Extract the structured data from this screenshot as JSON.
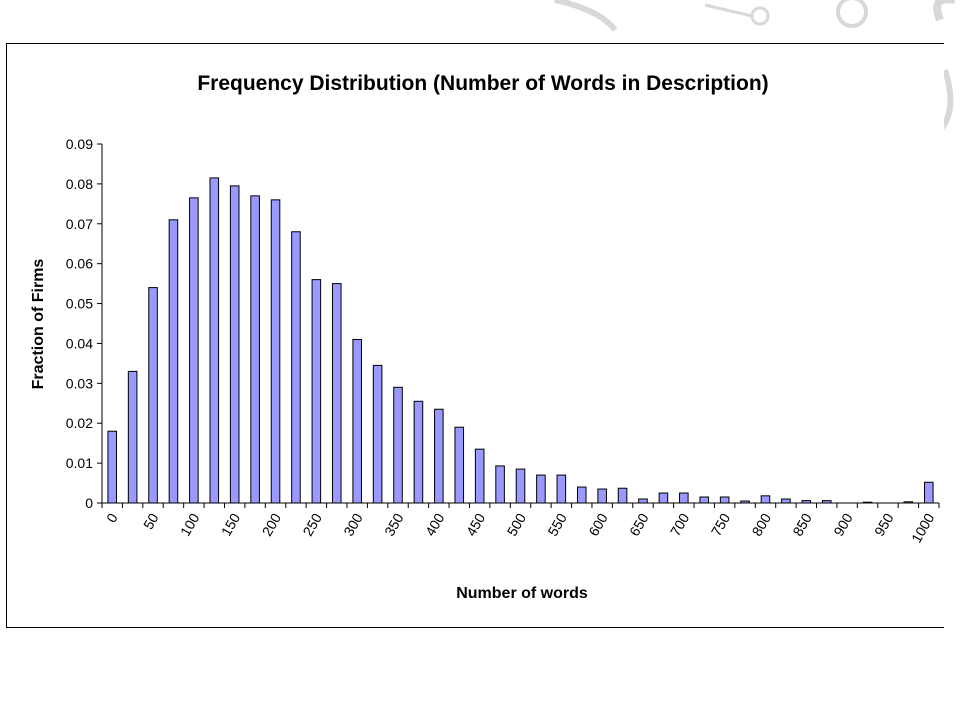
{
  "colors": {
    "bar_fill": "#9999ff",
    "bar_stroke": "#000000",
    "axis": "#000000",
    "background": "#ffffff"
  },
  "chart_data": {
    "type": "bar",
    "title": "Frequency Distribution (Number of Words in Description)",
    "xlabel": "Number of words",
    "ylabel": "Fraction of Firms",
    "ylim": [
      0,
      0.09
    ],
    "y_ticks": [
      "0",
      "0.01",
      "0.02",
      "0.03",
      "0.04",
      "0.05",
      "0.06",
      "0.07",
      "0.08",
      "0.09"
    ],
    "x_tick_labels": [
      "0",
      "50",
      "100",
      "150",
      "200",
      "250",
      "300",
      "350",
      "400",
      "450",
      "500",
      "550",
      "600",
      "650",
      "700",
      "750",
      "800",
      "850",
      "900",
      "950",
      "1000"
    ],
    "grid": false,
    "legend": "none",
    "categories": [
      0,
      25,
      50,
      75,
      100,
      125,
      150,
      175,
      200,
      225,
      250,
      275,
      300,
      325,
      350,
      375,
      400,
      425,
      450,
      475,
      500,
      525,
      550,
      575,
      600,
      625,
      650,
      675,
      700,
      725,
      750,
      775,
      800,
      825,
      850,
      875,
      900,
      925,
      950,
      975,
      1000
    ],
    "values": [
      0.018,
      0.033,
      0.054,
      0.071,
      0.0765,
      0.0815,
      0.0795,
      0.077,
      0.076,
      0.068,
      0.056,
      0.055,
      0.041,
      0.0345,
      0.029,
      0.0255,
      0.0235,
      0.019,
      0.0135,
      0.0093,
      0.0085,
      0.007,
      0.007,
      0.004,
      0.0035,
      0.0037,
      0.001,
      0.0025,
      0.0025,
      0.0015,
      0.0015,
      0.0005,
      0.0018,
      0.001,
      0.0006,
      0.0006,
      0.0,
      0.0002,
      0.0,
      0.0003,
      0.0052
    ]
  }
}
